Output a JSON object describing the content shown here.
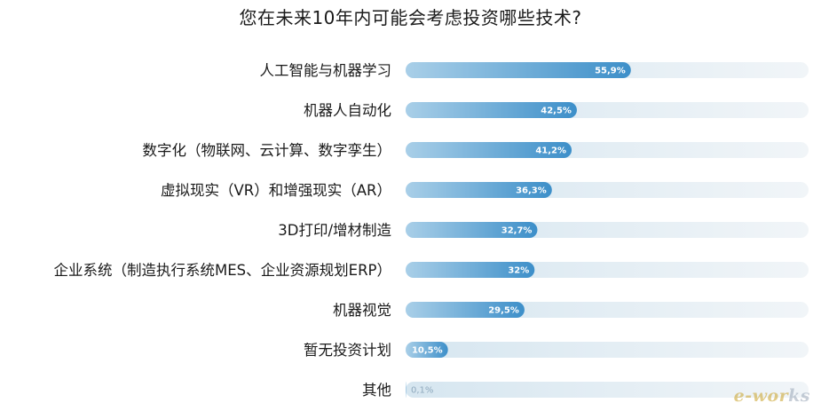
{
  "chart_data": {
    "type": "bar",
    "orientation": "horizontal",
    "title": "您在未来10年内可能会考虑投资哪些技术?",
    "categories": [
      "人工智能与机器学习",
      "机器人自动化",
      "数字化（物联网、云计算、数字孪生）",
      "虚拟现实（VR）和增强现实（AR）",
      "3D打印/增材制造",
      "企业系统（制造执行系统MES、企业资源规划ERP）",
      "机器视觉",
      "暂无投资计划",
      "其他"
    ],
    "values": [
      55.9,
      42.5,
      41.2,
      36.3,
      32.7,
      32,
      29.5,
      10.5,
      0.1
    ],
    "value_labels": [
      "55,9%",
      "42,5%",
      "41,2%",
      "36,3%",
      "32,7%",
      "32%",
      "29,5%",
      "10,5%",
      "0,1%"
    ],
    "xlim": [
      0,
      100
    ],
    "grid": false,
    "legend": "none",
    "colors": {
      "bar_start": "#a9cfe8",
      "bar_end": "#3d8fc9",
      "track_start": "#d6e6f0",
      "track_end": "#f1f5f8",
      "label_text": "#ffffff",
      "small_label_text": "#8fa9bd"
    }
  },
  "watermark": {
    "text_part1": "e-wor",
    "text_part2": "ks"
  }
}
